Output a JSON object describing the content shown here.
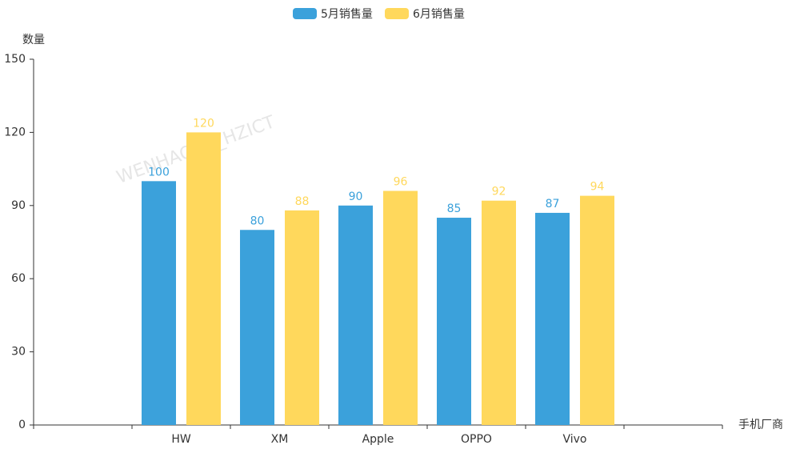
{
  "chart_data": {
    "type": "bar",
    "watermark": "WENHAOXU_HZICT",
    "y_label": "数量",
    "x_label": "手机厂商",
    "categories": [
      null,
      "HW",
      "XM",
      "Apple",
      "OPPO",
      "Vivo",
      null
    ],
    "series": [
      {
        "name": "5月销售量",
        "color": "#3ba1db",
        "values": [
          null,
          100,
          80,
          90,
          85,
          87,
          null
        ]
      },
      {
        "name": "6月销售量",
        "color": "#ffd85c",
        "values": [
          null,
          120,
          88,
          96,
          92,
          94,
          null
        ]
      }
    ],
    "ylim": [
      0,
      150
    ],
    "yticks": [
      0,
      30,
      60,
      90,
      120,
      150
    ],
    "grid": false
  }
}
